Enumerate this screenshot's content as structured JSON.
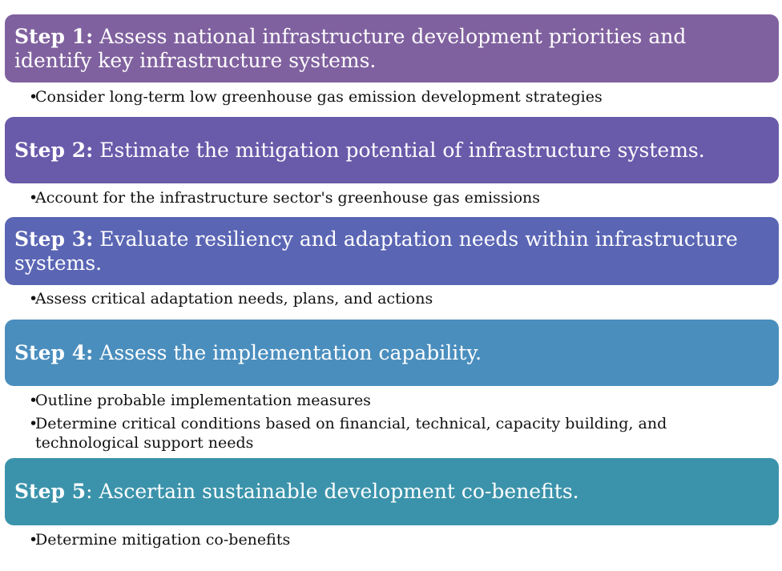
{
  "steps": [
    {
      "number": "Step 1:",
      "text": " Assess national infrastructure development priorities and identify key infrastructure systems.",
      "color": "#80619f",
      "bullets": [
        "Consider long-term low greenhouse gas emission development strategies"
      ]
    },
    {
      "number": "Step 2:",
      "text": " Estimate the mitigation potential of infrastructure systems.",
      "color": "#6a5aaa",
      "bullets": [
        "Account for the infrastructure sector's greenhouse gas emissions"
      ]
    },
    {
      "number": "Step 3:",
      "text": " Evaluate resiliency and adaptation needs within infrastructure systems.",
      "color": "#5a65b4",
      "bullets": [
        "Assess critical adaptation needs, plans, and actions"
      ]
    },
    {
      "number": "Step 4:",
      "text": " Assess the implementation capability.",
      "color": "#4a8ebe",
      "bullets": [
        "Outline probable implementation measures",
        "Determine critical conditions based on financial, technical, capacity building, and technological support needs"
      ]
    },
    {
      "number": "Step 5",
      "text": ": Ascertain sustainable development co-benefits.",
      "color": "#3b93ab",
      "bullets": [
        "Determine mitigation co-benefits"
      ]
    }
  ]
}
